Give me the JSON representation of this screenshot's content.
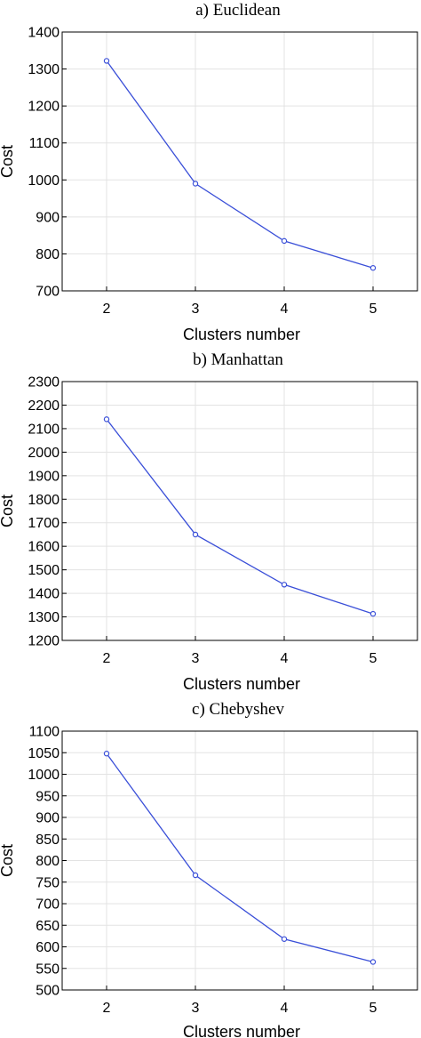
{
  "chart_data": [
    {
      "type": "line",
      "title": "a) Euclidean",
      "xlabel": "Clusters number",
      "ylabel": "Cost",
      "x": [
        2,
        3,
        4,
        5
      ],
      "xticks": [
        "2",
        "3",
        "4",
        "5"
      ],
      "xlim": [
        1.5,
        5.5
      ],
      "ylim": [
        700,
        1400
      ],
      "yticks": [
        700,
        800,
        900,
        1000,
        1100,
        1200,
        1300,
        1400
      ],
      "grid": true,
      "series": [
        {
          "values": [
            1322,
            990,
            835,
            762
          ],
          "color": "#3a4fd8"
        }
      ]
    },
    {
      "type": "line",
      "title": "b) Manhattan",
      "xlabel": "Clusters number",
      "ylabel": "Cost",
      "x": [
        2,
        3,
        4,
        5
      ],
      "xticks": [
        "2",
        "3",
        "4",
        "5"
      ],
      "xlim": [
        1.5,
        5.5
      ],
      "ylim": [
        1200,
        2300
      ],
      "yticks": [
        1200,
        1300,
        1400,
        1500,
        1600,
        1700,
        1800,
        1900,
        2000,
        2100,
        2200,
        2300
      ],
      "grid": true,
      "series": [
        {
          "values": [
            2140,
            1650,
            1437,
            1313
          ],
          "color": "#3a4fd8"
        }
      ]
    },
    {
      "type": "line",
      "title": "c) Chebyshev",
      "xlabel": "Clusters number",
      "ylabel": "Cost",
      "x": [
        2,
        3,
        4,
        5
      ],
      "xticks": [
        "2",
        "3",
        "4",
        "5"
      ],
      "xlim": [
        1.5,
        5.5
      ],
      "ylim": [
        500,
        1100
      ],
      "yticks": [
        500,
        550,
        600,
        650,
        700,
        750,
        800,
        850,
        900,
        950,
        1000,
        1050,
        1100
      ],
      "grid": true,
      "series": [
        {
          "values": [
            1048,
            766,
            618,
            565
          ],
          "color": "#3a4fd8"
        }
      ]
    }
  ]
}
